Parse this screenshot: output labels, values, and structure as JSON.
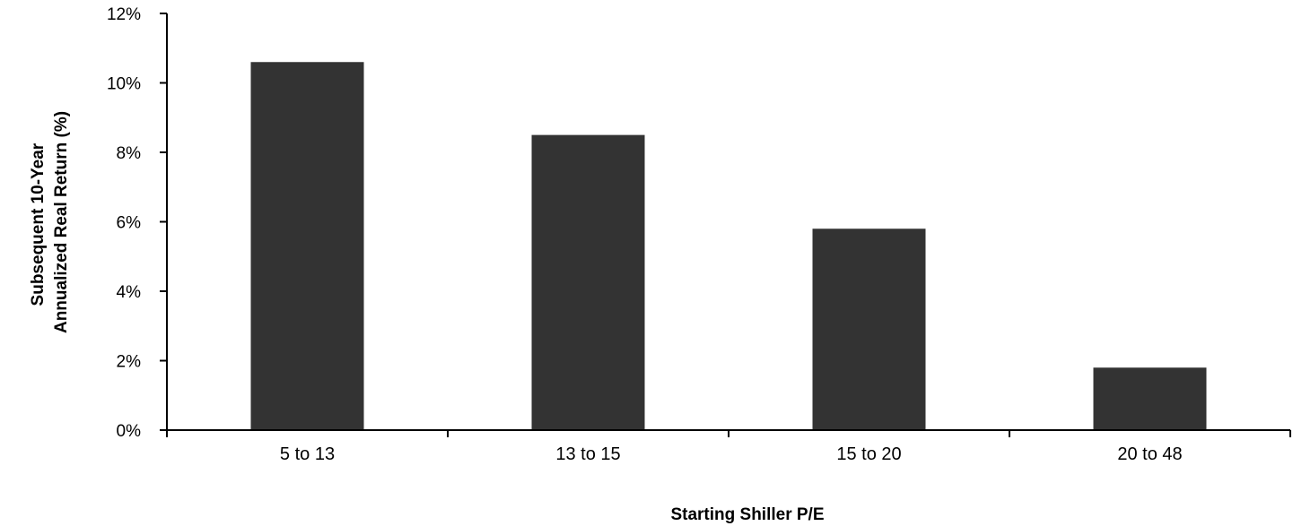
{
  "chart_data": {
    "type": "bar",
    "categories": [
      "5 to 13",
      "13 to 15",
      "15 to 20",
      "20 to 48"
    ],
    "values": [
      10.6,
      8.5,
      5.8,
      1.8
    ],
    "xlabel": "Starting Shiller P/E",
    "ylabel_lines": [
      "Subsequent 10-Year",
      "Annualized Real Return (%)"
    ],
    "ylim": [
      0,
      12
    ],
    "yticks": [
      0,
      2,
      4,
      6,
      8,
      10,
      12
    ],
    "ytick_labels": [
      "0%",
      "2%",
      "4%",
      "6%",
      "8%",
      "10%",
      "12%"
    ],
    "grid": false,
    "bar_color": "#333333",
    "axis_color": "#000000"
  }
}
